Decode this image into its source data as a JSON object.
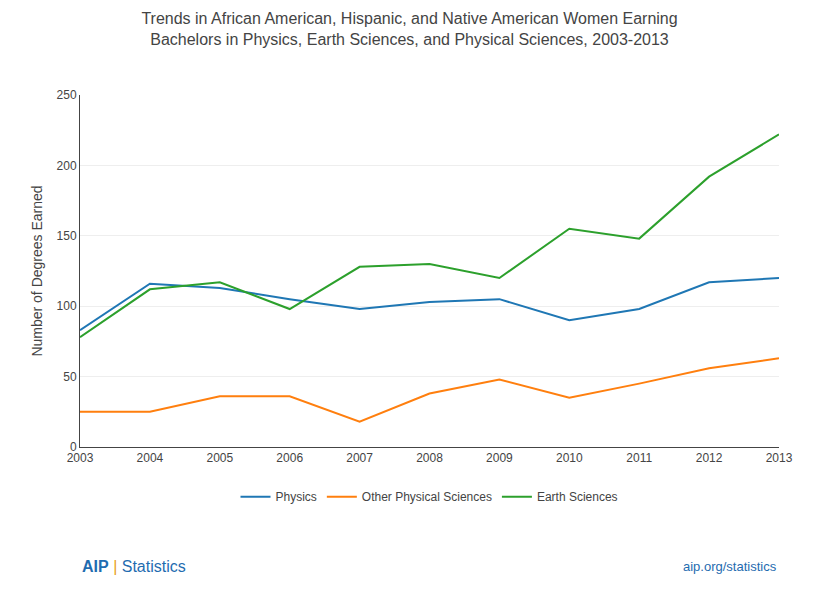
{
  "chart_data": {
    "type": "line",
    "title": "Trends in African American, Hispanic, and Native American Women Earning\nBachelors in Physics, Earth Sciences, and Physical Sciences, 2003-2013",
    "x": [
      2003,
      2004,
      2005,
      2006,
      2007,
      2008,
      2009,
      2010,
      2011,
      2012,
      2013
    ],
    "series": [
      {
        "name": "Physics",
        "values": [
          83,
          116,
          113,
          105,
          98,
          103,
          105,
          90,
          98,
          117,
          120
        ]
      },
      {
        "name": "Other Physical Sciences",
        "values": [
          25,
          25,
          36,
          36,
          18,
          38,
          48,
          35,
          45,
          56,
          63
        ]
      },
      {
        "name": "Earth Sciences",
        "values": [
          78,
          112,
          117,
          98,
          128,
          130,
          120,
          155,
          148,
          192,
          222
        ]
      }
    ],
    "ylabel": "Number of Degrees Earned",
    "xlim": [
      2003,
      2013
    ],
    "xticks": [
      2003,
      2004,
      2005,
      2006,
      2007,
      2008,
      2009,
      2010,
      2011,
      2012,
      2013
    ],
    "ylim": [
      0,
      250
    ],
    "yticks": [
      0,
      50,
      100,
      150,
      200,
      250
    ],
    "grid": true,
    "legend": "bottom",
    "annotations": [
      {
        "text": "AIP",
        "color": "#1F6CB0"
      },
      {
        "text": "|",
        "color": "#E8A020"
      },
      {
        "text": "Statistics",
        "color": "#1F6CB0"
      },
      {
        "text": "aip.org/statistics",
        "color": "#1F6CB0"
      }
    ]
  }
}
